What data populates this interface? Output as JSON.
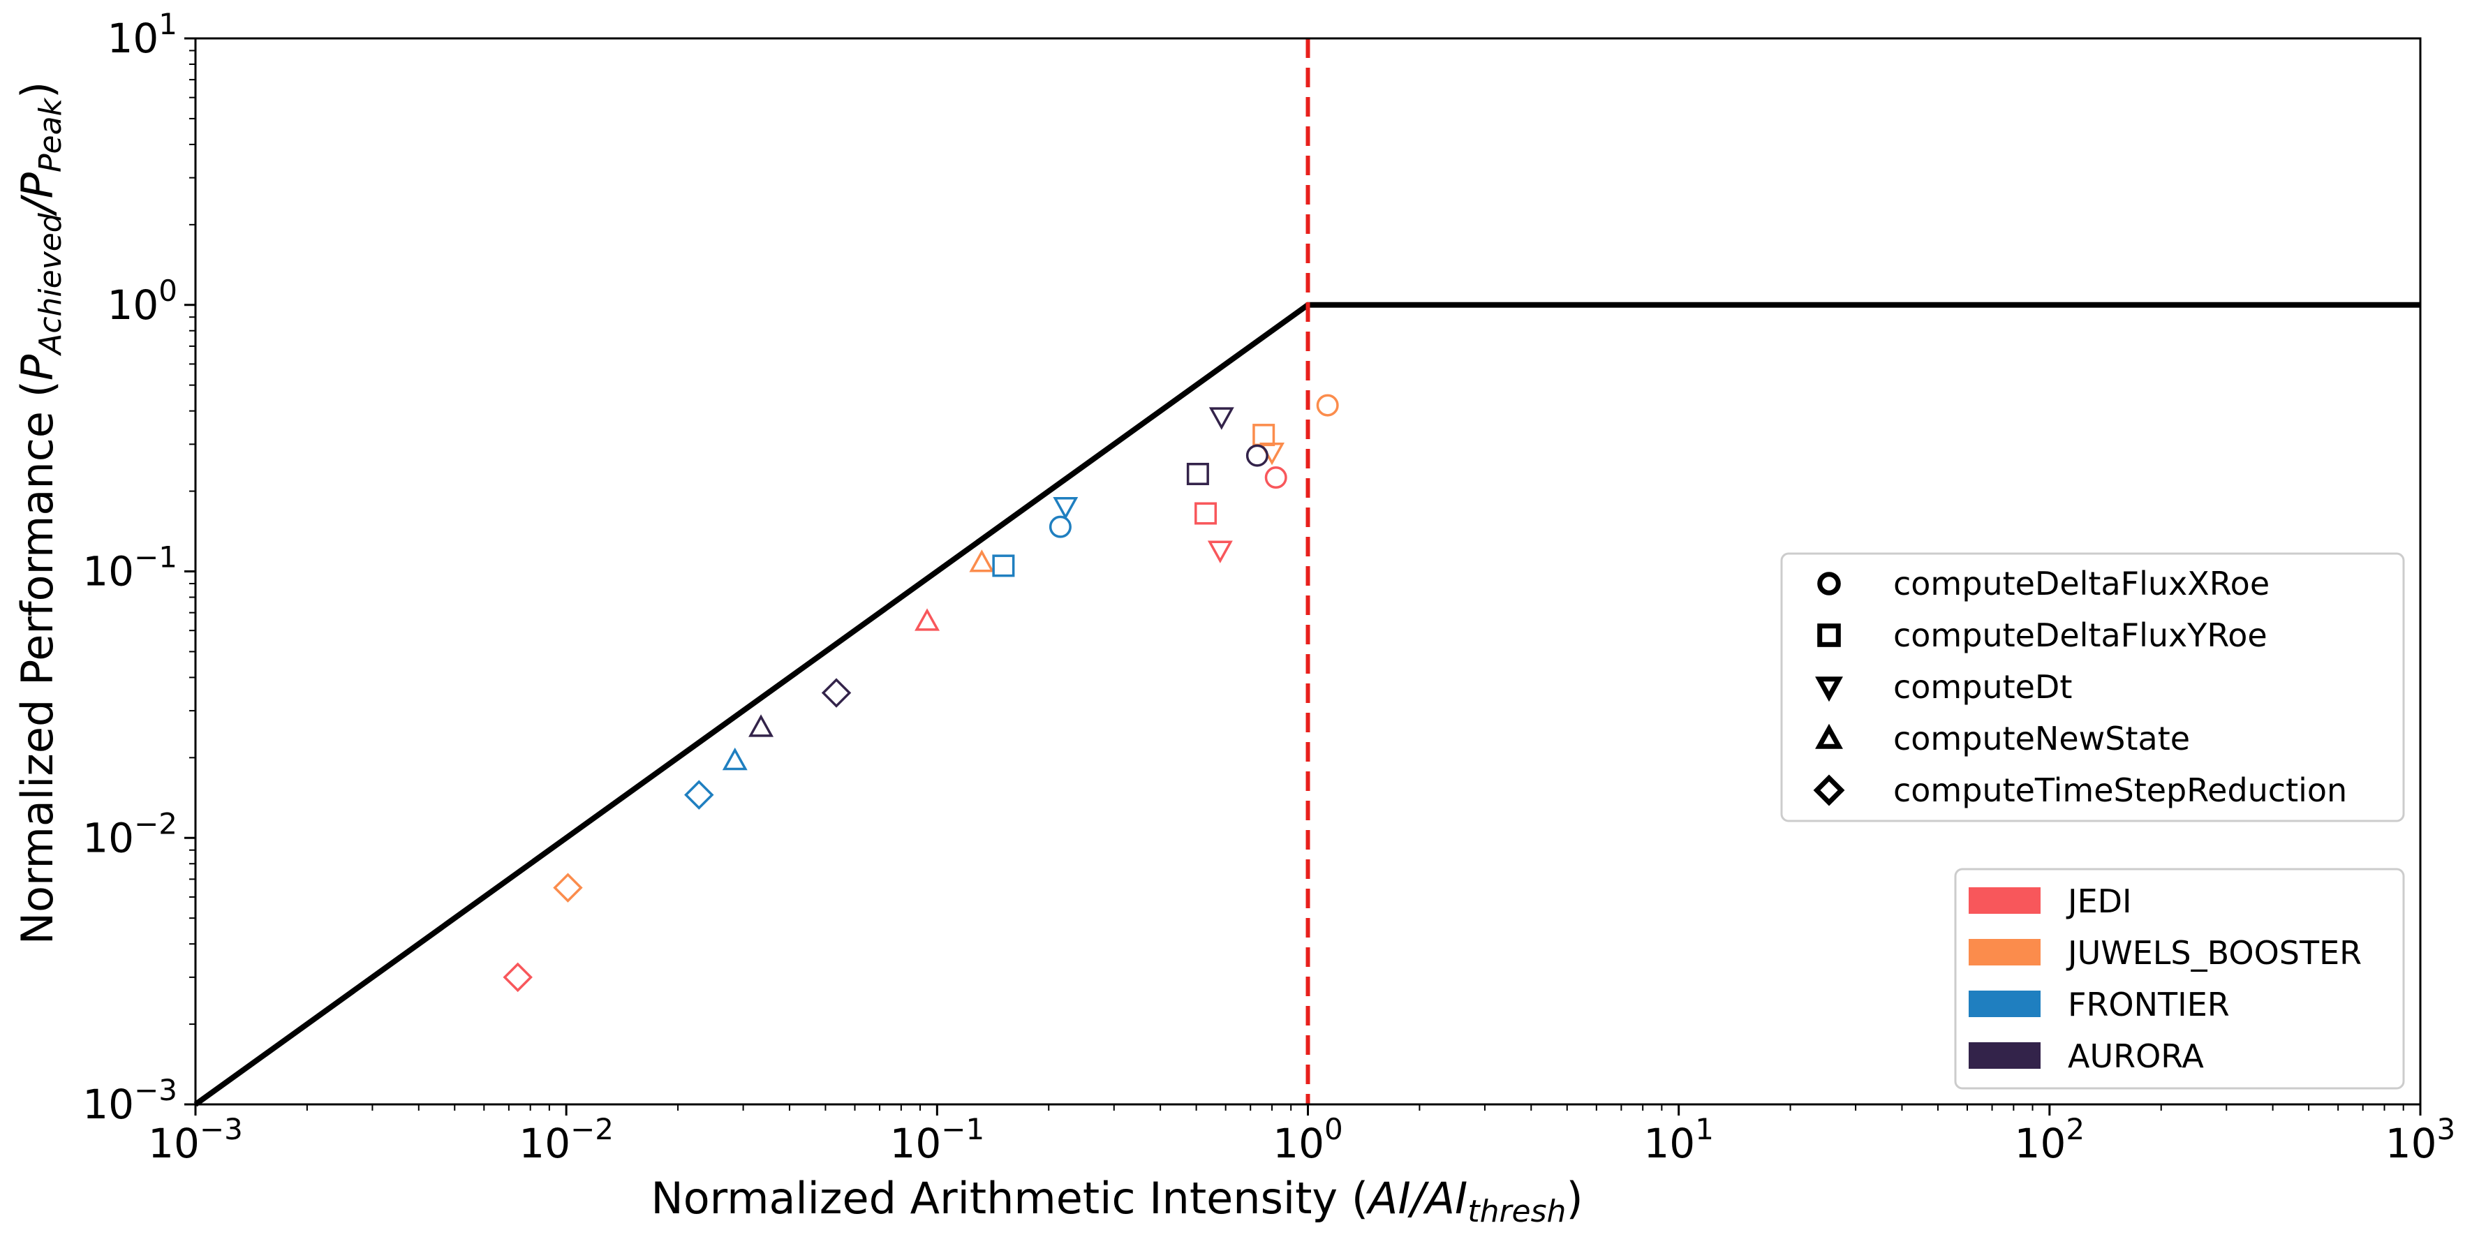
{
  "chart_data": {
    "type": "scatter",
    "scale": "log-log",
    "xlabel_main": "Normalized Arithmetic Intensity (",
    "xlabel_math": "AI/AI",
    "xlabel_sub": "thresh",
    "xlabel_close": ")",
    "ylabel_main": "Normalized Performance (",
    "ylabel_p1": "P",
    "ylabel_sub1": "Achieved",
    "ylabel_slash": "/P",
    "ylabel_sub2": "Peak",
    "ylabel_close": ")",
    "xlim": [
      0.001,
      1000
    ],
    "ylim": [
      0.001,
      10
    ],
    "x_ticks": [
      {
        "value": 0.001,
        "base": "10",
        "exp": "−3"
      },
      {
        "value": 0.01,
        "base": "10",
        "exp": "−2"
      },
      {
        "value": 0.1,
        "base": "10",
        "exp": "−1"
      },
      {
        "value": 1,
        "base": "10",
        "exp": "0"
      },
      {
        "value": 10,
        "base": "10",
        "exp": "1"
      },
      {
        "value": 100,
        "base": "10",
        "exp": "2"
      },
      {
        "value": 1000,
        "base": "10",
        "exp": "3"
      }
    ],
    "y_ticks": [
      {
        "value": 0.001,
        "base": "10",
        "exp": "−3"
      },
      {
        "value": 0.01,
        "base": "10",
        "exp": "−2"
      },
      {
        "value": 0.1,
        "base": "10",
        "exp": "−1"
      },
      {
        "value": 1,
        "base": "10",
        "exp": "0"
      },
      {
        "value": 10,
        "base": "10",
        "exp": "1"
      }
    ],
    "roofline": [
      [
        0.001,
        0.001
      ],
      [
        1,
        1
      ],
      [
        1000,
        1
      ]
    ],
    "threshold_x": 1,
    "colors": {
      "JEDI": "#f8575b",
      "JUWELS_BOOSTER": "#fb8c4c",
      "FRONTIER": "#1f7fc0",
      "AURORA": "#33234a",
      "roofline": "#000000",
      "threshold": "#e8201c"
    },
    "kernels": [
      {
        "name": "computeDeltaFluxXRoe",
        "marker": "circle"
      },
      {
        "name": "computeDeltaFluxYRoe",
        "marker": "square"
      },
      {
        "name": "computeDt",
        "marker": "triangle-down"
      },
      {
        "name": "computeNewState",
        "marker": "triangle-up"
      },
      {
        "name": "computeTimeStepReduction",
        "marker": "diamond"
      }
    ],
    "systems": [
      "JEDI",
      "JUWELS_BOOSTER",
      "FRONTIER",
      "AURORA"
    ],
    "points": [
      {
        "system": "JEDI",
        "kernel": "computeDeltaFluxXRoe",
        "x": 0.82,
        "y": 0.225
      },
      {
        "system": "JEDI",
        "kernel": "computeDeltaFluxYRoe",
        "x": 0.53,
        "y": 0.165
      },
      {
        "system": "JEDI",
        "kernel": "computeDt",
        "x": 0.58,
        "y": 0.12
      },
      {
        "system": "JEDI",
        "kernel": "computeNewState",
        "x": 0.094,
        "y": 0.065
      },
      {
        "system": "JEDI",
        "kernel": "computeTimeStepReduction",
        "x": 0.0074,
        "y": 0.003
      },
      {
        "system": "JUWELS_BOOSTER",
        "kernel": "computeDeltaFluxXRoe",
        "x": 1.13,
        "y": 0.42
      },
      {
        "system": "JUWELS_BOOSTER",
        "kernel": "computeDeltaFluxYRoe",
        "x": 0.76,
        "y": 0.325
      },
      {
        "system": "JUWELS_BOOSTER",
        "kernel": "computeDt",
        "x": 0.8,
        "y": 0.28
      },
      {
        "system": "JUWELS_BOOSTER",
        "kernel": "computeNewState",
        "x": 0.132,
        "y": 0.108
      },
      {
        "system": "JUWELS_BOOSTER",
        "kernel": "computeTimeStepReduction",
        "x": 0.0101,
        "y": 0.0065
      },
      {
        "system": "FRONTIER",
        "kernel": "computeDeltaFluxXRoe",
        "x": 0.215,
        "y": 0.147
      },
      {
        "system": "FRONTIER",
        "kernel": "computeDeltaFluxYRoe",
        "x": 0.151,
        "y": 0.105
      },
      {
        "system": "FRONTIER",
        "kernel": "computeDt",
        "x": 0.222,
        "y": 0.175
      },
      {
        "system": "FRONTIER",
        "kernel": "computeNewState",
        "x": 0.0285,
        "y": 0.0195
      },
      {
        "system": "FRONTIER",
        "kernel": "computeTimeStepReduction",
        "x": 0.0228,
        "y": 0.0145
      },
      {
        "system": "AURORA",
        "kernel": "computeDeltaFluxXRoe",
        "x": 0.73,
        "y": 0.272
      },
      {
        "system": "AURORA",
        "kernel": "computeDeltaFluxYRoe",
        "x": 0.505,
        "y": 0.232
      },
      {
        "system": "AURORA",
        "kernel": "computeDt",
        "x": 0.585,
        "y": 0.38
      },
      {
        "system": "AURORA",
        "kernel": "computeNewState",
        "x": 0.0335,
        "y": 0.026
      },
      {
        "system": "AURORA",
        "kernel": "computeTimeStepReduction",
        "x": 0.0535,
        "y": 0.035
      }
    ]
  }
}
